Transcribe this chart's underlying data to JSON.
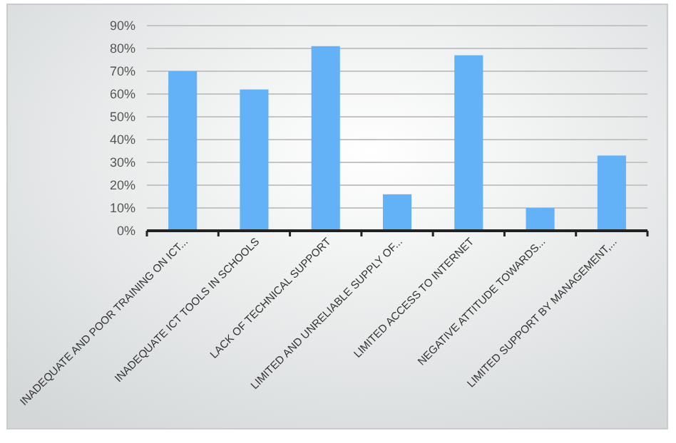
{
  "chart_data": {
    "type": "bar",
    "categories": [
      "INADEQUATE AND POOR TRAINING ON ICT...",
      "INADEQUATE ICT TOOLS IN SCHOOLS",
      "LACK OF TECHNICAL SUPPORT",
      "LIMITED AND UNRELIABLE SUPPLY OF...",
      "LIMITED ACCESS TO INTERNET",
      "NEGATIVE ATTITUDE TOWARDS...",
      "LIMITED SUPPORT BY MANAGEMENT,..."
    ],
    "values": [
      70,
      62,
      81,
      16,
      77,
      10,
      33
    ],
    "color": "#63b1f7",
    "ylim": [
      0,
      90
    ],
    "yticks": [
      {
        "value": 0,
        "label": "0%"
      },
      {
        "value": 10,
        "label": "10%"
      },
      {
        "value": 20,
        "label": "20%"
      },
      {
        "value": 30,
        "label": "30%"
      },
      {
        "value": 40,
        "label": "40%"
      },
      {
        "value": 50,
        "label": "50%"
      },
      {
        "value": 60,
        "label": "60%"
      },
      {
        "value": 70,
        "label": "70%"
      },
      {
        "value": 80,
        "label": "80%"
      },
      {
        "value": 90,
        "label": "90%"
      }
    ],
    "grid": "y"
  }
}
